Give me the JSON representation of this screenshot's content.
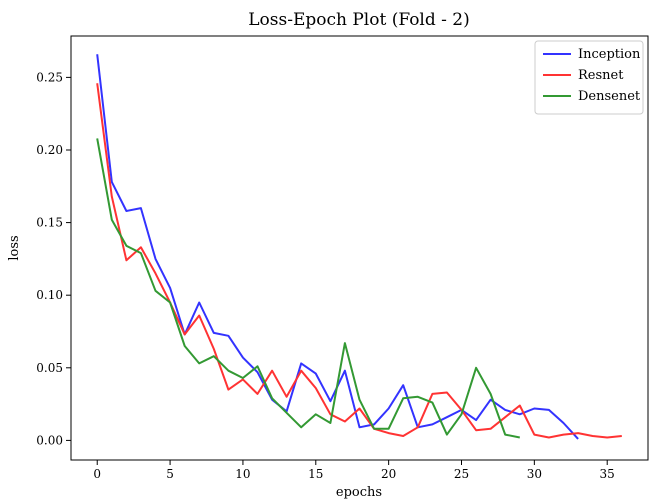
{
  "chart_data": {
    "type": "line",
    "title": "Loss-Epoch Plot (Fold - 2)",
    "xlabel": "epochs",
    "ylabel": "loss",
    "xlim": [
      -1.8,
      37.8
    ],
    "ylim": [
      -0.0135,
      0.2785
    ],
    "xticks": [
      0,
      5,
      10,
      15,
      20,
      25,
      30,
      35
    ],
    "xtick_labels": [
      "0",
      "5",
      "10",
      "15",
      "20",
      "25",
      "30",
      "35"
    ],
    "yticks": [
      0.0,
      0.05,
      0.1,
      0.15,
      0.2,
      0.25
    ],
    "ytick_labels": [
      "0.00",
      "0.05",
      "0.10",
      "0.15",
      "0.20",
      "0.25"
    ],
    "grid": false,
    "legend_position": "top-right",
    "series": [
      {
        "name": "Inception",
        "color": "#3333ff",
        "x": [
          0,
          1,
          2,
          3,
          4,
          5,
          6,
          7,
          8,
          9,
          10,
          11,
          12,
          13,
          14,
          15,
          16,
          17,
          18,
          19,
          20,
          21,
          22,
          23,
          24,
          25,
          26,
          27,
          28,
          29,
          30,
          31,
          32,
          33
        ],
        "values": [
          0.266,
          0.178,
          0.158,
          0.16,
          0.125,
          0.105,
          0.073,
          0.095,
          0.074,
          0.072,
          0.057,
          0.047,
          0.028,
          0.02,
          0.053,
          0.046,
          0.027,
          0.048,
          0.009,
          0.011,
          0.022,
          0.038,
          0.009,
          0.011,
          0.016,
          0.021,
          0.014,
          0.028,
          0.021,
          0.018,
          0.022,
          0.021,
          0.012,
          0.001
        ]
      },
      {
        "name": "Resnet",
        "color": "#ff3333",
        "x": [
          0,
          1,
          2,
          3,
          4,
          5,
          6,
          7,
          8,
          9,
          10,
          11,
          12,
          13,
          14,
          15,
          16,
          17,
          18,
          19,
          20,
          21,
          22,
          23,
          24,
          25,
          26,
          27,
          28,
          29,
          30,
          31,
          32,
          33,
          34,
          35,
          36
        ],
        "values": [
          0.246,
          0.168,
          0.124,
          0.133,
          0.115,
          0.095,
          0.073,
          0.086,
          0.063,
          0.035,
          0.042,
          0.032,
          0.048,
          0.03,
          0.048,
          0.036,
          0.018,
          0.013,
          0.022,
          0.008,
          0.005,
          0.003,
          0.009,
          0.032,
          0.033,
          0.021,
          0.007,
          0.008,
          0.016,
          0.024,
          0.004,
          0.002,
          0.004,
          0.005,
          0.003,
          0.002,
          0.003
        ]
      },
      {
        "name": "Densenet",
        "color": "#339933",
        "x": [
          0,
          1,
          2,
          3,
          4,
          5,
          6,
          7,
          8,
          9,
          10,
          11,
          12,
          13,
          14,
          15,
          16,
          17,
          18,
          19,
          20,
          21,
          22,
          23,
          24,
          25,
          26,
          27,
          28,
          29
        ],
        "values": [
          0.208,
          0.152,
          0.134,
          0.129,
          0.103,
          0.095,
          0.065,
          0.053,
          0.058,
          0.048,
          0.043,
          0.051,
          0.029,
          0.019,
          0.009,
          0.018,
          0.012,
          0.067,
          0.028,
          0.008,
          0.008,
          0.029,
          0.03,
          0.026,
          0.004,
          0.018,
          0.05,
          0.032,
          0.004,
          0.002
        ]
      }
    ]
  }
}
